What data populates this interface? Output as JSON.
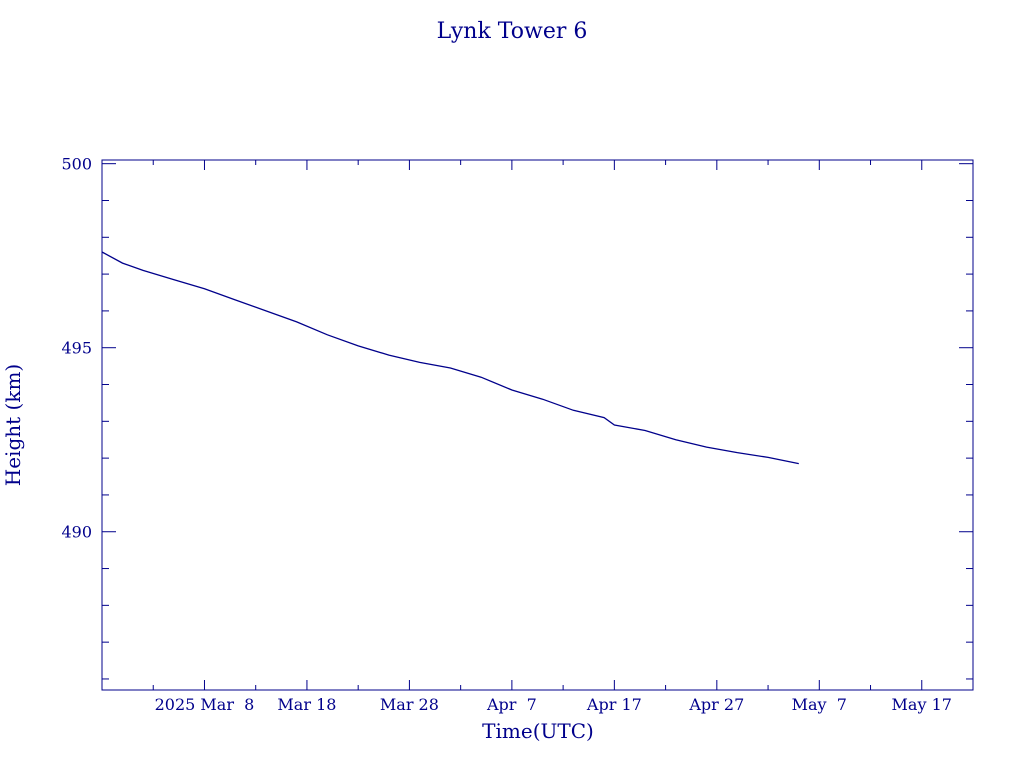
{
  "chart_data": {
    "type": "line",
    "title": "Lynk Tower 6",
    "xlabel": "Time(UTC)",
    "ylabel": "Height (km)",
    "x_range": [
      "2025-02-26",
      "2025-05-22"
    ],
    "ylim": [
      485.7,
      500.1
    ],
    "x_ticks": [
      {
        "date": "2025-03-08",
        "label": "2025 Mar  8"
      },
      {
        "date": "2025-03-18",
        "label": "Mar 18"
      },
      {
        "date": "2025-03-28",
        "label": "Mar 28"
      },
      {
        "date": "2025-04-07",
        "label": "Apr  7"
      },
      {
        "date": "2025-04-17",
        "label": "Apr 17"
      },
      {
        "date": "2025-04-27",
        "label": "Apr 27"
      },
      {
        "date": "2025-05-07",
        "label": "May  7"
      },
      {
        "date": "2025-05-17",
        "label": "May 17"
      }
    ],
    "y_ticks": [
      {
        "value": 500,
        "label": "500"
      },
      {
        "value": 495,
        "label": "495"
      },
      {
        "value": 490,
        "label": "490"
      }
    ],
    "y_minor_step": 1,
    "grid": false,
    "color": "#00008b",
    "series": [
      {
        "points": [
          [
            "2025-02-26",
            497.6
          ],
          [
            "2025-02-28",
            497.3
          ],
          [
            "2025-03-02",
            497.1
          ],
          [
            "2025-03-05",
            496.85
          ],
          [
            "2025-03-08",
            496.6
          ],
          [
            "2025-03-11",
            496.3
          ],
          [
            "2025-03-14",
            496.0
          ],
          [
            "2025-03-17",
            495.7
          ],
          [
            "2025-03-20",
            495.35
          ],
          [
            "2025-03-23",
            495.05
          ],
          [
            "2025-03-26",
            494.8
          ],
          [
            "2025-03-29",
            494.6
          ],
          [
            "2025-04-01",
            494.45
          ],
          [
            "2025-04-04",
            494.2
          ],
          [
            "2025-04-07",
            493.85
          ],
          [
            "2025-04-10",
            493.6
          ],
          [
            "2025-04-13",
            493.3
          ],
          [
            "2025-04-16",
            493.1
          ],
          [
            "2025-04-17",
            492.9
          ],
          [
            "2025-04-20",
            492.75
          ],
          [
            "2025-04-23",
            492.5
          ],
          [
            "2025-04-26",
            492.3
          ],
          [
            "2025-04-29",
            492.15
          ],
          [
            "2025-05-02",
            492.02
          ],
          [
            "2025-05-05",
            491.85
          ]
        ]
      }
    ]
  }
}
